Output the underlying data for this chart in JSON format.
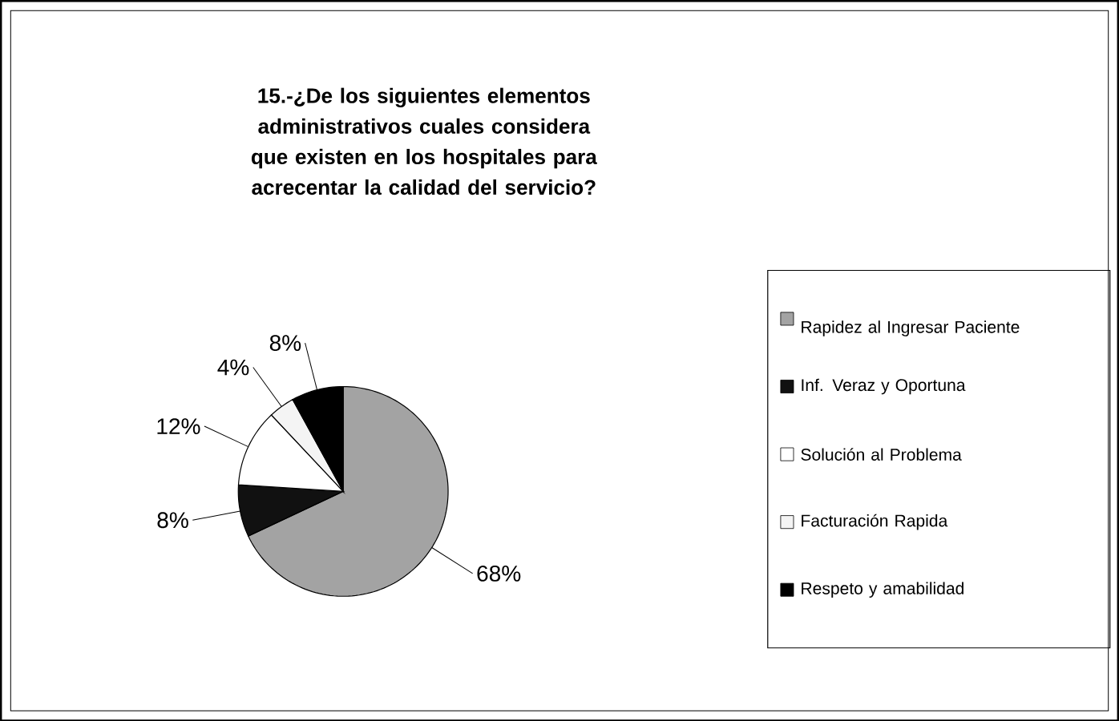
{
  "chart_data": {
    "type": "pie",
    "title": "15.-¿De los siguientes elementos administrativos cuales considera que existen en los hospitales para acrecentar la calidad del servicio?",
    "categories": [
      "Rapidez al Ingresar Paciente",
      "Inf. Veraz y Oportuna",
      "Solución al Problema",
      "Facturación Rapida",
      "Respeto y amabilidad"
    ],
    "values": [
      68,
      8,
      12,
      4,
      8
    ],
    "value_labels": [
      "68%",
      "8%",
      "12%",
      "4%",
      "8%"
    ],
    "colors": [
      "#a3a3a3",
      "#111111",
      "#ffffff",
      "#f4f4f4",
      "#000000"
    ],
    "legend": "right"
  }
}
